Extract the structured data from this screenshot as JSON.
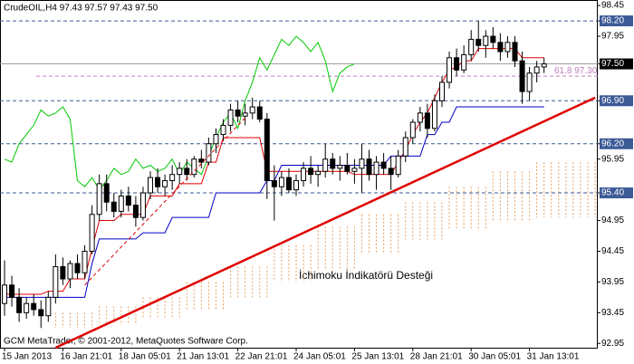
{
  "chart_data": {
    "type": "candlestick",
    "title": "CrudeOIL,H4  97.43 97.57 97.43 97.50",
    "footer": "GCM MetaTrader, © 2001-2012, MetaQuotes Software Corp.",
    "annotation": "İchimoku İndikatörü Desteği",
    "categories": [
      "15 Jan 2013",
      null,
      null,
      null,
      null,
      null,
      null,
      null,
      "16 Jan 21:01",
      null,
      null,
      null,
      null,
      null,
      null,
      null,
      "18 Jan 05:01",
      null,
      null,
      null,
      null,
      null,
      null,
      null,
      "21 Jan 13:01",
      null,
      null,
      null,
      null,
      null,
      null,
      null,
      "22 Jan 21:01",
      null,
      null,
      null,
      null,
      null,
      null,
      null,
      "24 Jan 05:01",
      null,
      null,
      null,
      null,
      null,
      null,
      null,
      "25 Jan 13:01",
      null,
      null,
      null,
      null,
      null,
      null,
      null,
      "28 Jan 21:01",
      null,
      null,
      null,
      null,
      null,
      null,
      null,
      "30 Jan 05:01",
      null,
      null,
      null,
      null,
      null,
      null,
      null,
      "31 Jan 13:01",
      null,
      null,
      null,
      null,
      null,
      null,
      null,
      null,
      null
    ],
    "open": [
      93.6,
      93.9,
      93.7,
      93.45,
      93.6,
      93.5,
      93.4,
      93.7,
      94.2,
      94.0,
      94.25,
      94.1,
      94.45,
      95.05,
      95.55,
      95.25,
      95.1,
      95.35,
      95.2,
      95.0,
      95.4,
      95.65,
      95.5,
      95.6,
      95.7,
      95.8,
      95.7,
      95.95,
      95.9,
      96.2,
      96.35,
      96.5,
      96.75,
      96.65,
      96.7,
      96.8,
      96.6,
      95.6,
      95.5,
      95.65,
      95.45,
      95.6,
      95.8,
      95.7,
      95.75,
      95.95,
      95.8,
      95.85,
      95.75,
      95.8,
      95.95,
      95.7,
      95.9,
      95.8,
      95.7,
      96.0,
      96.3,
      96.55,
      96.7,
      96.45,
      96.9,
      97.2,
      97.6,
      97.4,
      97.65,
      97.9,
      97.8,
      97.95,
      97.85,
      97.7,
      97.85,
      97.55,
      97.05,
      97.35,
      97.45,
      null,
      null,
      null,
      null,
      null,
      null,
      null
    ],
    "high": [
      94.3,
      94.05,
      93.85,
      93.7,
      93.75,
      93.65,
      93.8,
      94.4,
      94.35,
      94.3,
      94.4,
      94.55,
      95.2,
      95.7,
      95.7,
      95.4,
      95.45,
      95.5,
      95.35,
      95.5,
      95.75,
      95.8,
      95.7,
      95.85,
      95.9,
      95.95,
      96.0,
      96.1,
      96.3,
      96.45,
      96.6,
      96.85,
      96.9,
      96.85,
      96.95,
      96.9,
      96.7,
      95.85,
      95.75,
      95.8,
      95.7,
      95.9,
      96.0,
      95.85,
      96.2,
      96.05,
      96.0,
      96.05,
      95.95,
      96.2,
      96.1,
      96.0,
      96.05,
      96.0,
      96.1,
      96.4,
      96.6,
      96.8,
      96.85,
      97.0,
      97.3,
      97.7,
      97.75,
      97.8,
      98.05,
      98.2,
      98.05,
      98.1,
      98.0,
      97.95,
      97.95,
      97.7,
      97.45,
      97.55,
      97.6,
      null,
      null,
      null,
      null,
      null,
      null,
      null
    ],
    "low": [
      93.4,
      93.55,
      93.3,
      93.35,
      93.4,
      93.2,
      93.3,
      93.6,
      93.9,
      93.85,
      94.0,
      94.0,
      94.4,
      94.95,
      95.1,
      95.0,
      95.0,
      95.1,
      94.85,
      94.95,
      95.3,
      95.4,
      95.35,
      95.45,
      95.55,
      95.6,
      95.65,
      95.8,
      95.85,
      96.05,
      96.25,
      96.4,
      96.55,
      96.5,
      96.6,
      96.55,
      95.3,
      94.95,
      95.35,
      95.4,
      95.35,
      95.5,
      95.55,
      95.5,
      95.65,
      95.7,
      95.6,
      95.7,
      95.55,
      95.4,
      95.6,
      95.45,
      95.7,
      95.45,
      95.65,
      95.9,
      96.2,
      96.4,
      96.3,
      96.4,
      96.8,
      97.1,
      97.3,
      97.35,
      97.55,
      97.7,
      97.6,
      97.75,
      97.55,
      97.6,
      97.45,
      96.85,
      96.9,
      97.2,
      97.35,
      null,
      null,
      null,
      null,
      null,
      null,
      null
    ],
    "close": [
      93.9,
      93.7,
      93.45,
      93.6,
      93.5,
      93.4,
      93.7,
      94.2,
      94.0,
      94.25,
      94.1,
      94.45,
      95.05,
      95.55,
      95.25,
      95.1,
      95.35,
      95.2,
      95.0,
      95.4,
      95.65,
      95.5,
      95.6,
      95.7,
      95.8,
      95.7,
      95.95,
      95.9,
      96.2,
      96.35,
      96.5,
      96.75,
      96.65,
      96.7,
      96.8,
      96.6,
      95.6,
      95.5,
      95.65,
      95.45,
      95.6,
      95.8,
      95.7,
      95.75,
      95.95,
      95.8,
      95.85,
      95.75,
      95.8,
      95.95,
      95.7,
      95.9,
      95.8,
      95.7,
      96.0,
      96.3,
      96.55,
      96.7,
      96.45,
      96.9,
      97.2,
      97.6,
      97.4,
      97.65,
      97.9,
      97.8,
      97.95,
      97.85,
      97.7,
      97.85,
      97.55,
      97.05,
      97.35,
      97.45,
      97.5,
      null,
      null,
      null,
      null,
      null,
      null,
      null
    ],
    "lines": [
      {
        "color": "#e00000",
        "values": [
          93.75,
          93.75,
          93.75,
          93.75,
          93.75,
          93.75,
          93.8,
          93.8,
          93.8,
          94.0,
          94.0,
          94.0,
          94.5,
          94.95,
          94.95,
          94.95,
          95.05,
          95.05,
          95.05,
          95.05,
          95.35,
          95.35,
          95.35,
          95.35,
          95.55,
          95.55,
          95.55,
          95.55,
          95.9,
          95.9,
          96.3,
          96.3,
          96.3,
          96.3,
          96.3,
          96.3,
          95.75,
          95.75,
          95.75,
          95.75,
          95.75,
          95.75,
          95.75,
          95.75,
          95.75,
          95.75,
          95.75,
          95.75,
          95.7,
          95.7,
          95.7,
          95.7,
          95.7,
          95.7,
          95.9,
          96.1,
          96.35,
          96.55,
          96.7,
          96.95,
          97.2,
          97.4,
          97.45,
          97.55,
          97.55,
          97.75,
          97.75,
          97.75,
          97.75,
          97.75,
          97.75,
          97.6,
          97.6,
          97.6,
          97.6,
          null,
          null,
          null,
          null,
          null,
          null,
          null
        ]
      },
      {
        "color": "#0000c8",
        "values": [
          93.7,
          93.7,
          93.7,
          93.7,
          93.7,
          93.7,
          93.7,
          93.7,
          93.7,
          93.7,
          93.7,
          93.7,
          94.25,
          94.65,
          94.65,
          94.65,
          94.65,
          94.65,
          94.65,
          94.75,
          94.75,
          94.75,
          94.75,
          95.0,
          95.0,
          95.0,
          95.0,
          95.0,
          95.0,
          95.4,
          95.4,
          95.4,
          95.4,
          95.4,
          95.4,
          95.4,
          95.6,
          95.6,
          95.85,
          95.85,
          95.85,
          95.85,
          95.85,
          95.85,
          95.85,
          95.85,
          95.85,
          95.85,
          95.85,
          95.85,
          95.85,
          95.85,
          95.85,
          96.0,
          96.0,
          96.0,
          96.0,
          96.0,
          96.35,
          96.35,
          96.55,
          96.55,
          96.8,
          96.8,
          96.8,
          96.8,
          96.8,
          96.8,
          96.8,
          96.8,
          96.8,
          96.8,
          96.8,
          96.8,
          96.8,
          null,
          null,
          null,
          null,
          null,
          null,
          null
        ]
      },
      {
        "color": "#00c800",
        "values": [
          95.95,
          95.9,
          96.2,
          96.35,
          96.5,
          96.75,
          96.65,
          96.7,
          96.8,
          96.6,
          95.6,
          95.5,
          95.65,
          95.45,
          95.6,
          95.8,
          95.7,
          95.75,
          95.95,
          95.8,
          95.85,
          95.75,
          95.8,
          95.95,
          95.7,
          95.9,
          95.8,
          95.7,
          96.0,
          96.3,
          96.55,
          96.7,
          96.45,
          96.9,
          97.2,
          97.6,
          97.4,
          97.65,
          97.9,
          97.8,
          97.95,
          97.85,
          97.7,
          97.85,
          97.55,
          97.05,
          97.35,
          97.45,
          97.5,
          null,
          null,
          null,
          null,
          null,
          null,
          null,
          null,
          null,
          null,
          null,
          null,
          null,
          null,
          null,
          null,
          null,
          null,
          null,
          null,
          null,
          null,
          null,
          null,
          null,
          null,
          null,
          null,
          null,
          null,
          null,
          null,
          null
        ]
      }
    ],
    "cloud": {
      "color": "#e8a060",
      "upper": [
        null,
        null,
        null,
        null,
        null,
        null,
        null,
        93.45,
        93.45,
        93.45,
        93.45,
        93.45,
        93.45,
        93.55,
        93.55,
        93.55,
        93.55,
        93.55,
        93.55,
        93.7,
        93.7,
        93.7,
        93.7,
        93.7,
        93.7,
        93.95,
        93.95,
        93.95,
        93.95,
        93.95,
        93.95,
        94.2,
        94.2,
        94.2,
        94.2,
        94.2,
        94.2,
        94.55,
        94.55,
        94.55,
        94.55,
        94.55,
        94.55,
        94.85,
        94.85,
        94.85,
        94.85,
        94.85,
        94.85,
        95.05,
        95.05,
        95.05,
        95.05,
        95.05,
        95.05,
        95.25,
        95.25,
        95.25,
        95.25,
        95.25,
        95.25,
        95.5,
        95.5,
        95.5,
        95.5,
        95.5,
        95.5,
        95.75,
        95.75,
        95.75,
        95.75,
        95.75,
        95.75,
        95.9,
        95.9,
        95.9,
        95.9,
        95.9,
        95.9,
        95.9,
        95.9,
        95.9
      ],
      "lower": [
        null,
        null,
        null,
        null,
        null,
        null,
        null,
        93.2,
        93.2,
        93.2,
        93.2,
        93.2,
        93.2,
        93.25,
        93.25,
        93.25,
        93.25,
        93.25,
        93.25,
        93.35,
        93.35,
        93.35,
        93.35,
        93.35,
        93.35,
        93.5,
        93.5,
        93.5,
        93.5,
        93.5,
        93.5,
        93.7,
        93.7,
        93.7,
        93.7,
        93.7,
        93.7,
        93.95,
        93.95,
        93.95,
        93.95,
        93.95,
        93.95,
        94.15,
        94.15,
        94.15,
        94.15,
        94.15,
        94.15,
        94.4,
        94.4,
        94.4,
        94.4,
        94.4,
        94.4,
        94.6,
        94.6,
        94.6,
        94.6,
        94.6,
        94.6,
        94.8,
        94.8,
        94.8,
        94.8,
        94.8,
        94.8,
        94.95,
        94.95,
        94.95,
        94.95,
        94.95,
        94.95,
        95.0,
        95.0,
        95.0,
        95.0,
        95.0,
        95.0,
        95.0,
        95.0,
        95.0
      ]
    },
    "trendlines": [
      {
        "color": "#e00000",
        "style": "solid",
        "points": [
          [
            7,
            92.88
          ],
          [
            81,
            96.95
          ]
        ]
      },
      {
        "color": "#e00000",
        "style": "dashed",
        "points": [
          [
            11,
            93.9
          ],
          [
            33,
            96.62
          ]
        ]
      }
    ],
    "fib_level": {
      "value": 97.3,
      "label": "61.8 97.30",
      "color": "#c080c0"
    },
    "levels": {
      "values": [
        98.2,
        96.9,
        96.2,
        95.4
      ],
      "color": "#3c5a96"
    },
    "last_price": {
      "value": 97.5,
      "color": "#a0a0a0"
    },
    "ylim": [
      92.88,
      98.54
    ],
    "yticks": [
      92.95,
      93.45,
      93.95,
      94.45,
      94.95,
      {
        "value": 95.4,
        "label": "95.40"
      },
      95.95,
      {
        "value": 96.2,
        "label": "96.20"
      },
      {
        "value": 96.9,
        "label": "96.90"
      },
      {
        "value": 97.5,
        "label": "97.50"
      },
      97.95,
      {
        "value": 98.2,
        "label": "98.20"
      },
      98.45
    ]
  }
}
